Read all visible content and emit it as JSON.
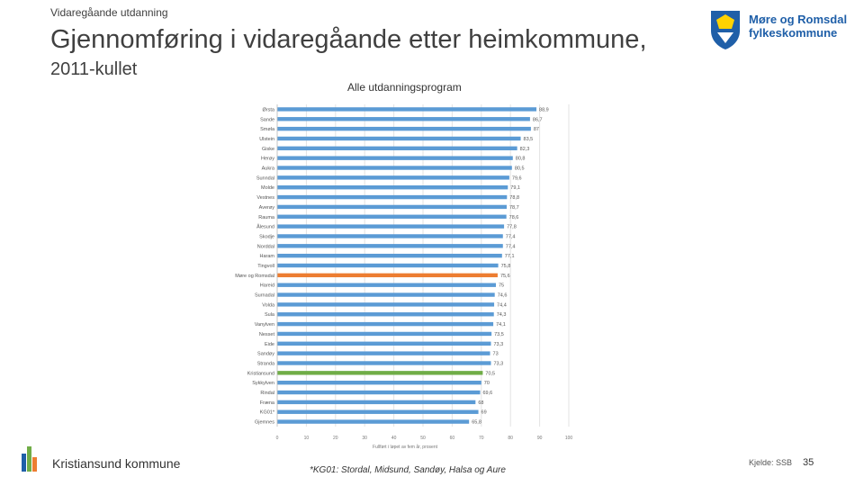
{
  "header": {
    "breadcrumb": "Vidaregåande utdanning",
    "title": "Gjennomføring i vidaregåande etter heimkommune,",
    "subtitle": "2011-kullet"
  },
  "logo": {
    "line1": "Møre og Romsdal",
    "line2": "fylkeskommune",
    "color": "#1f5fa8"
  },
  "footer": {
    "organization": "Kristiansund kommune",
    "footnote": "*KG01: Stordal, Midsund, Sandøy, Halsa og Aure",
    "source": "Kjelde: SSB",
    "page_number": "35"
  },
  "chart_data": {
    "type": "bar",
    "orientation": "horizontal",
    "title": "Alle utdanningsprogram",
    "xlabel": "Fullført i løpet av fem år, prosent",
    "ylabel": "",
    "xlim": [
      0,
      100
    ],
    "xticks": [
      "0",
      "10",
      "20",
      "30",
      "40",
      "50",
      "60",
      "70",
      "80",
      "90",
      "100"
    ],
    "grid": true,
    "colors": {
      "default": "#5b9bd5",
      "highlight_county": "#ed7d31",
      "highlight_municipality": "#70ad47"
    },
    "categories": [
      "Ørsta",
      "Sande",
      "Smøla",
      "Ulstein",
      "Giske",
      "Herøy",
      "Aukra",
      "Sunndal",
      "Molde",
      "Vestnes",
      "Averøy",
      "Rauma",
      "Ålesund",
      "Skodje",
      "Norddal",
      "Haram",
      "Tingvoll",
      "Møre og Romsdal",
      "Hareid",
      "Surnadal",
      "Volda",
      "Sula",
      "Vanylven",
      "Nesset",
      "Eide",
      "Sandøy",
      "Stranda",
      "Kristiansund",
      "Sykkylven",
      "Rindal",
      "Fræna",
      "KG01*",
      "Gjemnes"
    ],
    "values": [
      88.9,
      86.7,
      87,
      83.5,
      82.3,
      80.8,
      80.5,
      79.6,
      79.1,
      78.8,
      78.7,
      78.6,
      77.8,
      77.4,
      77.4,
      77.1,
      75.8,
      75.6,
      75,
      74.6,
      74.4,
      74.3,
      74.1,
      73.5,
      73.3,
      73,
      73.3,
      70.5,
      70,
      69.6,
      68,
      69,
      65.8
    ],
    "value_labels": [
      "88,9",
      "86,7",
      "87",
      "83,5",
      "82,3",
      "80,8",
      "80,5",
      "79,6",
      "79,1",
      "78,8",
      "78,7",
      "78,6",
      "77,8",
      "77,4",
      "77,4",
      "77,1",
      "75,8",
      "75,6",
      "75",
      "74,6",
      "74,4",
      "74,3",
      "74,1",
      "73,5",
      "73,3",
      "73",
      "73,3",
      "70,5",
      "70",
      "69,6",
      "68",
      "69",
      "65,8"
    ],
    "highlights": {
      "Møre og Romsdal": "highlight_county",
      "Kristiansund": "highlight_municipality"
    }
  }
}
